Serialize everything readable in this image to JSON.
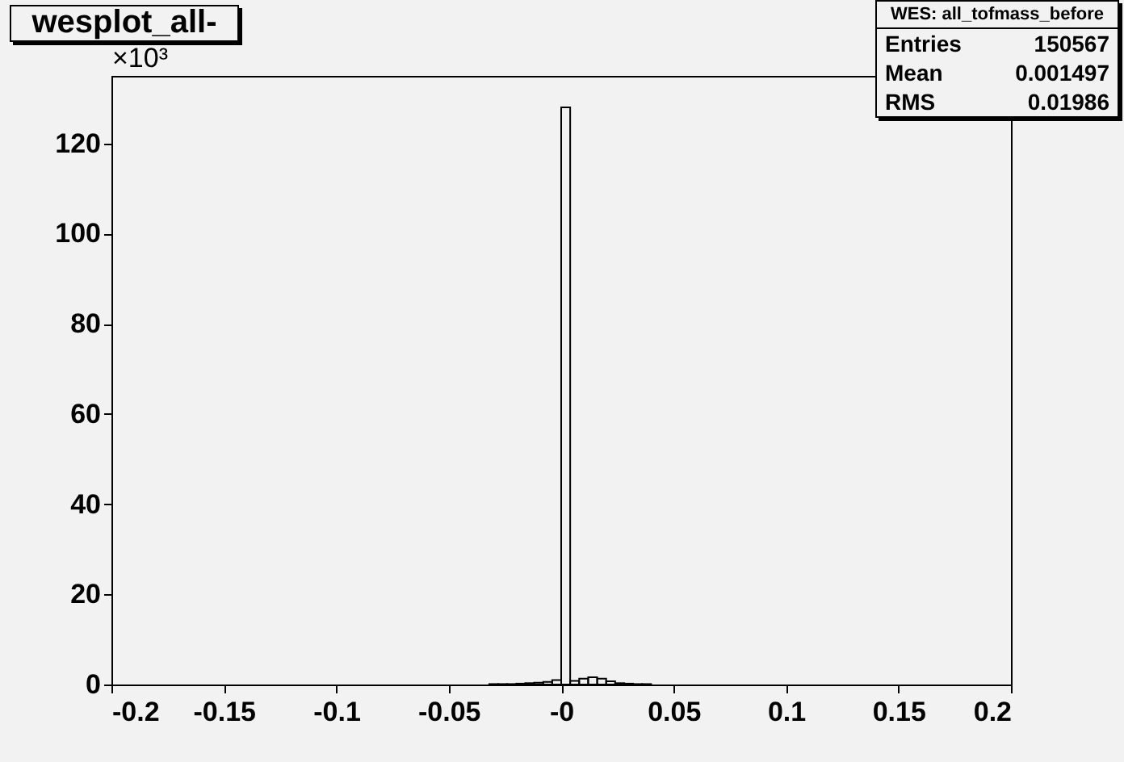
{
  "chart_data": {
    "type": "histogram",
    "title": "wesplot_all-",
    "ylabel": "×10³",
    "bins": [
      -0.032,
      -0.028,
      -0.024,
      -0.02,
      -0.016,
      -0.012,
      -0.008,
      -0.004,
      0,
      0.004,
      0.008,
      0.012,
      0.016,
      0.02,
      0.024,
      0.028,
      0.032,
      0.036,
      0.04
    ],
    "values": [
      0.1,
      0.1,
      0.1,
      0.2,
      0.3,
      0.4,
      0.6,
      1.0,
      128,
      0.8,
      1.3,
      1.6,
      1.3,
      0.7,
      0.3,
      0.2,
      0.1,
      0.1
    ],
    "color": "#000000",
    "xlim": [
      -0.2,
      0.2
    ],
    "xticks": [
      -0.2,
      -0.15,
      -0.1,
      -0.05,
      {
        "value": 0,
        "label": "-0"
      },
      0.05,
      0.1,
      0.15,
      0.2
    ],
    "ylim": [
      0,
      135
    ],
    "yticks": [
      0,
      20,
      40,
      60,
      80,
      100,
      120
    ],
    "annotations": [
      "WES: all_tofmass_before",
      "Entries",
      "150567",
      "Mean",
      "0.001497",
      "RMS",
      "0.01986"
    ]
  }
}
